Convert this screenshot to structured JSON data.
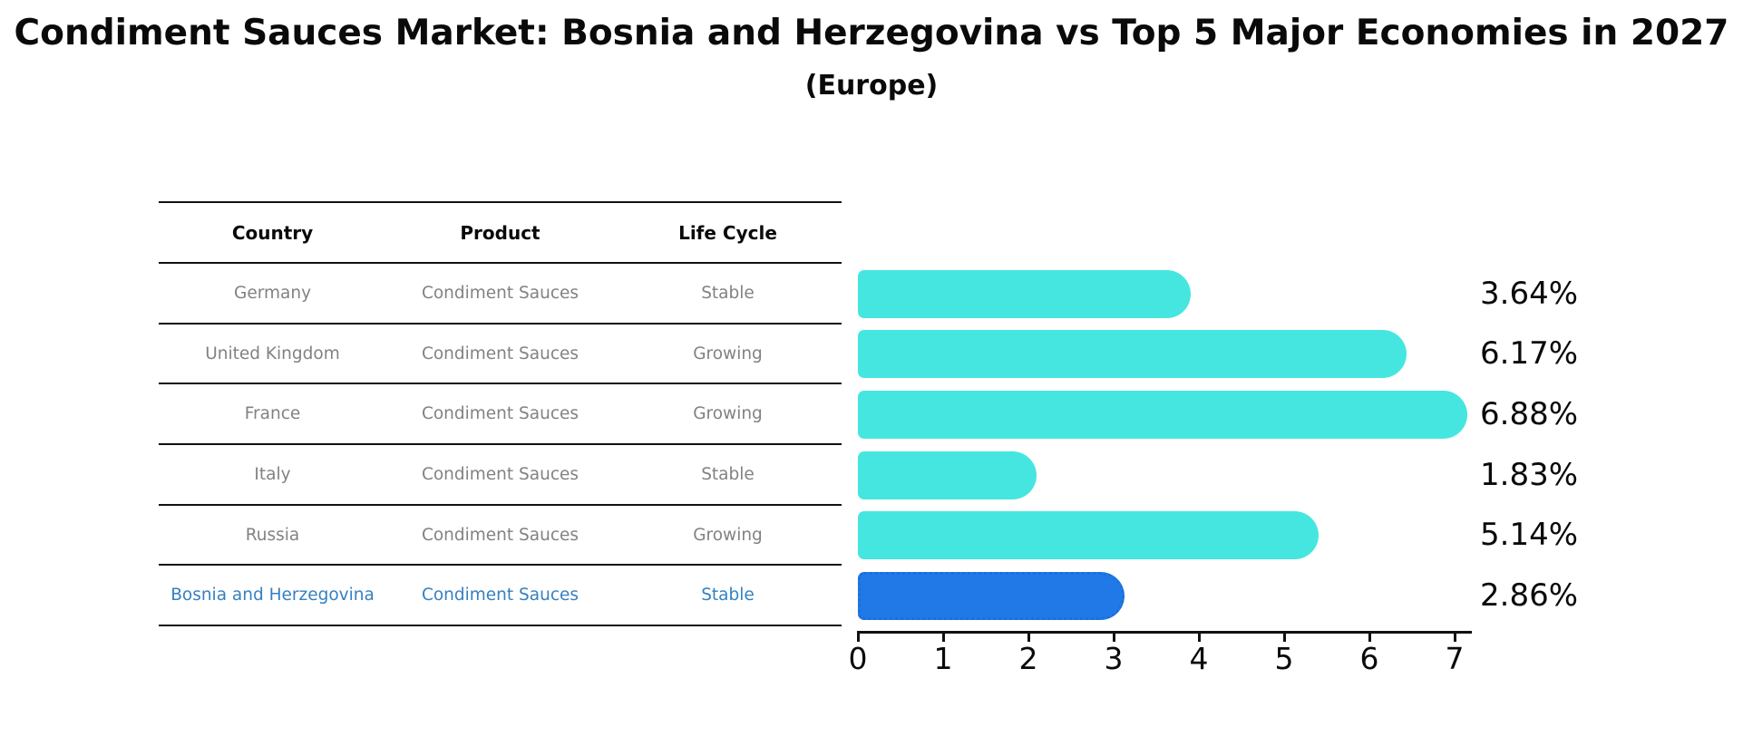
{
  "header": {
    "title": "Condiment Sauces Market: Bosnia and Herzegovina vs Top 5 Major Economies in 2027",
    "subtitle": "(Europe)"
  },
  "table": {
    "columns": [
      "Country",
      "Product",
      "Life Cycle"
    ],
    "rows": [
      {
        "country": "Germany",
        "product": "Condiment Sauces",
        "life_cycle": "Stable",
        "highlight": false
      },
      {
        "country": "United Kingdom",
        "product": "Condiment Sauces",
        "life_cycle": "Growing",
        "highlight": false
      },
      {
        "country": "France",
        "product": "Condiment Sauces",
        "life_cycle": "Growing",
        "highlight": false
      },
      {
        "country": "Italy",
        "product": "Condiment Sauces",
        "life_cycle": "Stable",
        "highlight": false
      },
      {
        "country": "Russia",
        "product": "Condiment Sauces",
        "life_cycle": "Growing",
        "highlight": false
      },
      {
        "country": "Bosnia and Herzegovina",
        "product": "Condiment Sauces",
        "life_cycle": "Stable",
        "highlight": true
      }
    ]
  },
  "chart_data": {
    "type": "bar",
    "orientation": "horizontal",
    "title": "Condiment Sauces Market: Bosnia and Herzegovina vs Top 5 Major Economies in 2027",
    "subtitle": "(Europe)",
    "categories": [
      "Germany",
      "United Kingdom",
      "France",
      "Italy",
      "Russia",
      "Bosnia and Herzegovina"
    ],
    "values": [
      3.64,
      6.17,
      6.88,
      1.83,
      5.14,
      2.86
    ],
    "value_labels": [
      "3.64%",
      "6.17%",
      "6.88%",
      "1.83%",
      "5.14%",
      "2.86%"
    ],
    "xlim": [
      0,
      7
    ],
    "xticks": [
      "0",
      "1",
      "2",
      "3",
      "4",
      "5",
      "6",
      "7"
    ],
    "grid": false,
    "legend": false,
    "highlight_index": 5
  },
  "colors": {
    "bar": "#45E6E0",
    "highlight_bar": "#2079E6",
    "highlight_border": "#1A6FDD",
    "highlight_text": "#3580C1",
    "table_text": "#828282",
    "line": "#111111"
  }
}
